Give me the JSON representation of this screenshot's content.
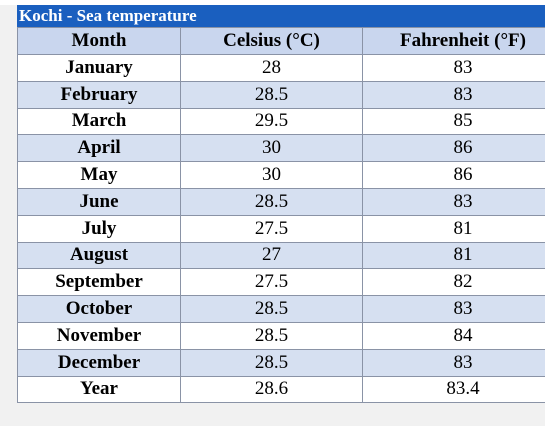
{
  "table": {
    "title": "Kochi - Sea temperature",
    "header": [
      "Month",
      "Celsius (°C)",
      "Fahrenheit (°F)"
    ],
    "rows": [
      [
        "January",
        28,
        83
      ],
      [
        "February",
        28.5,
        83
      ],
      [
        "March",
        29.5,
        85
      ],
      [
        "April",
        30,
        86
      ],
      [
        "May",
        30,
        86
      ],
      [
        "June",
        28.5,
        83
      ],
      [
        "July",
        27.5,
        81
      ],
      [
        "August",
        27,
        81
      ],
      [
        "September",
        27.5,
        82
      ],
      [
        "October",
        28.5,
        83
      ],
      [
        "November",
        28.5,
        84
      ],
      [
        "December",
        28.5,
        83
      ],
      [
        "Year",
        28.6,
        83.4
      ]
    ]
  }
}
